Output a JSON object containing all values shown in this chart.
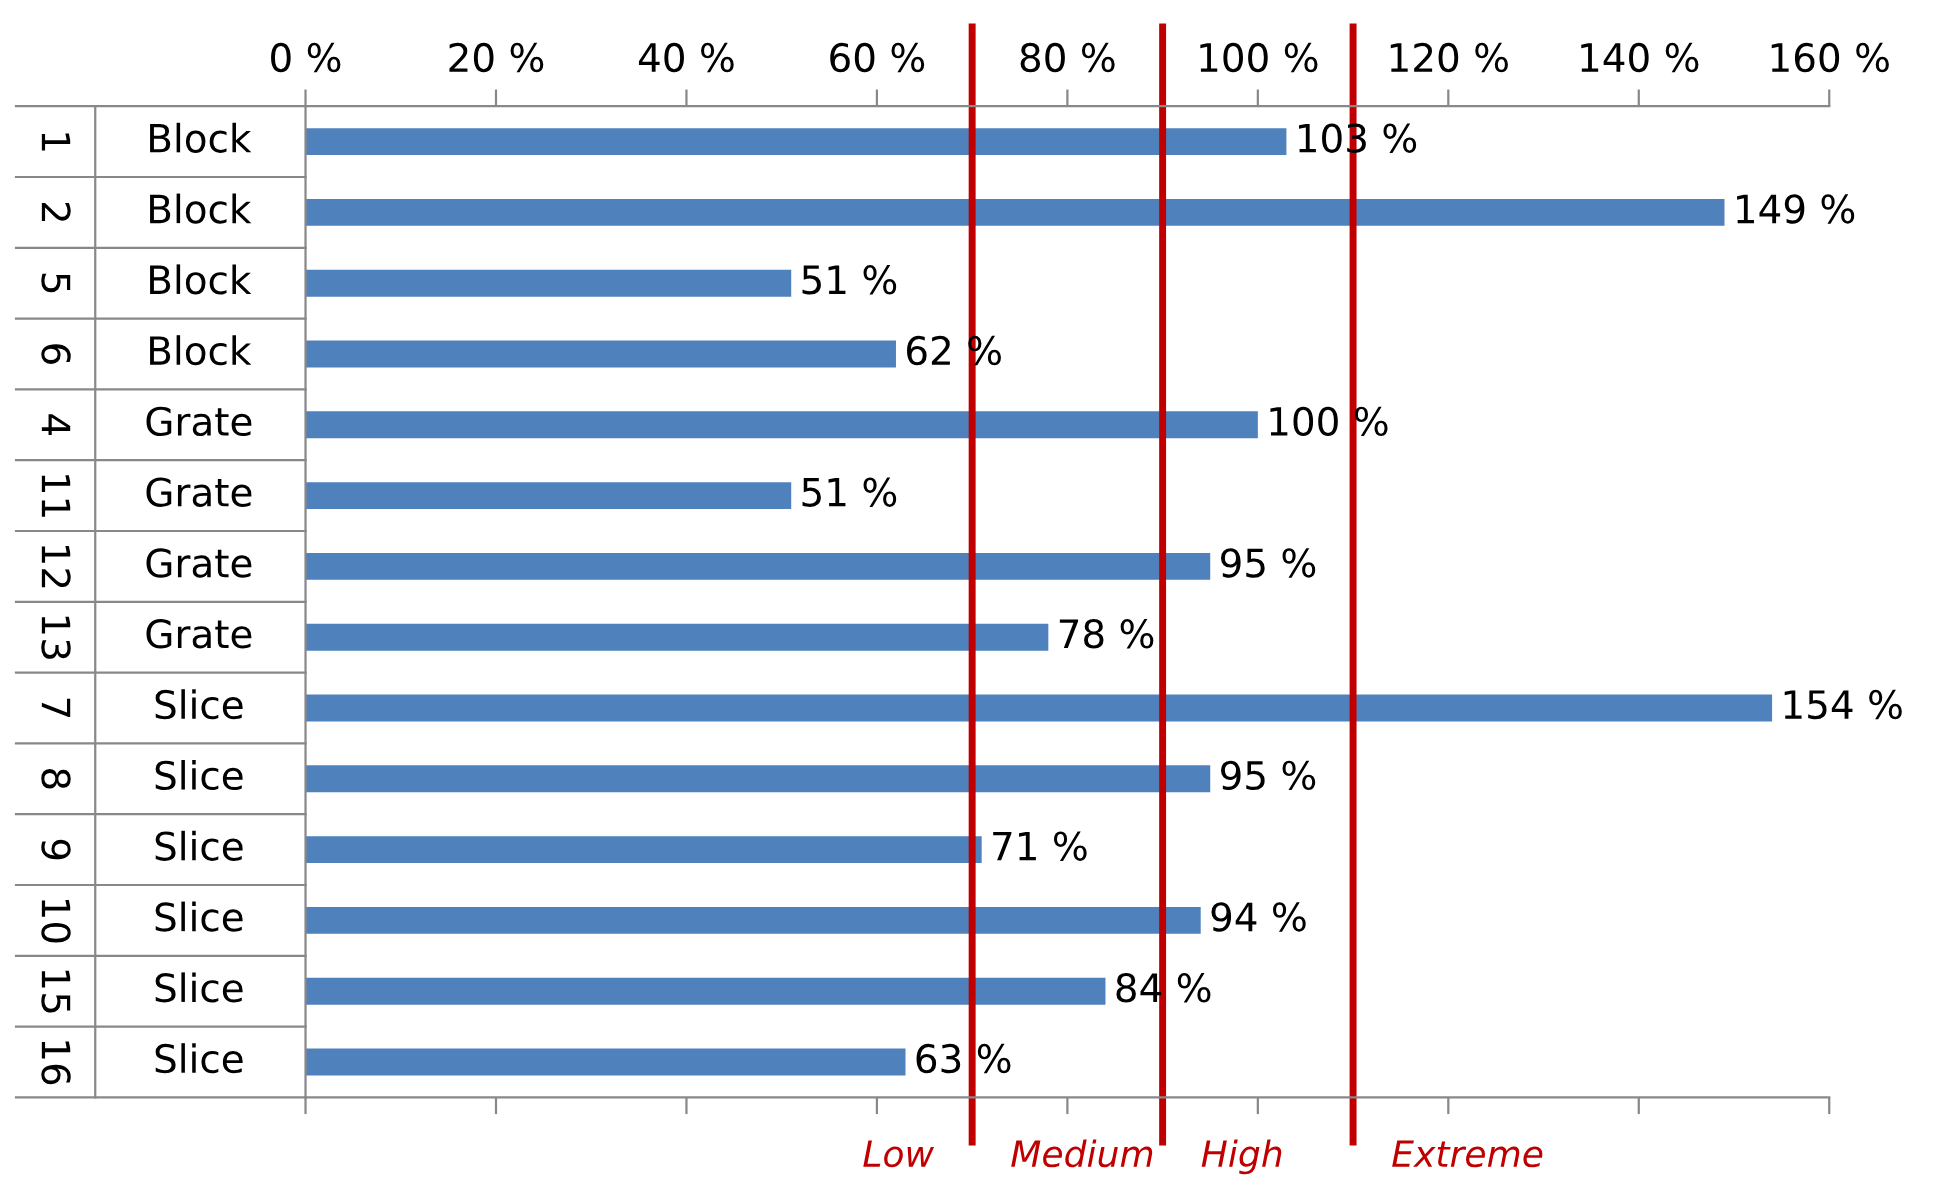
{
  "chart_data": {
    "type": "bar",
    "orientation": "horizontal",
    "categories": [
      "1 Block",
      "2 Block",
      "5 Block",
      "6 Block",
      "4 Grate",
      "11 Grate",
      "12 Grate",
      "13 Grate",
      "7 Slice",
      "8 Slice",
      "9 Slice",
      "10 Slice",
      "15 Slice",
      "16 Slice"
    ],
    "values": [
      103,
      149,
      51,
      62,
      100,
      51,
      95,
      78,
      154,
      95,
      71,
      94,
      84,
      63
    ],
    "value_labels": [
      "103 %",
      "149 %",
      "51 %",
      "62 %",
      "100 %",
      "51 %",
      "95 %",
      "78 %",
      "154 %",
      "95 %",
      "71 %",
      "94 %",
      "84 %",
      "63 %"
    ],
    "color": "#4f81bd",
    "xlim": [
      0,
      160
    ],
    "xticks": [
      {
        "value": 0,
        "label": "0 %"
      },
      {
        "value": 20,
        "label": "20 %"
      },
      {
        "value": 40,
        "label": "40 %"
      },
      {
        "value": 60,
        "label": "60 %"
      },
      {
        "value": 80,
        "label": "80 %"
      },
      {
        "value": 100,
        "label": "100 %"
      },
      {
        "value": 120,
        "label": "120 %"
      },
      {
        "value": 140,
        "label": "140 %"
      },
      {
        "value": 160,
        "label": "160 %"
      }
    ],
    "ref_lines": [
      {
        "axis": "x",
        "value": 70,
        "color": "#c00000"
      },
      {
        "axis": "x",
        "value": 90,
        "color": "#c00000"
      },
      {
        "axis": "x",
        "value": 110,
        "color": "#c00000"
      }
    ],
    "annotations": [
      "Low",
      "Medium",
      "High",
      "Extreme"
    ],
    "grid": false,
    "legend": false
  }
}
